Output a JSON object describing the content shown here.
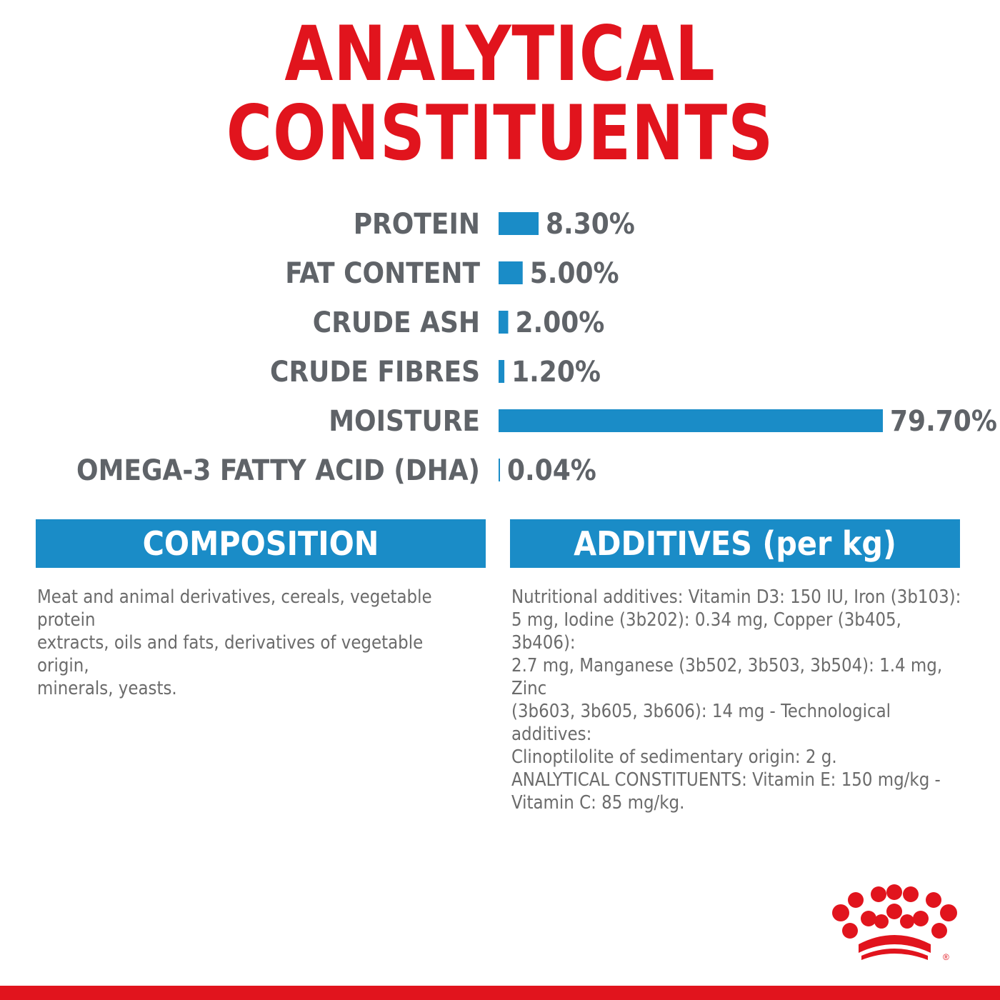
{
  "page_title": "ANALYTICAL CONSTITUENTS",
  "colors": {
    "title": "#e1141d",
    "bar": "#1a8cc7",
    "label": "#5f6368",
    "header_bg": "#1a8cc7",
    "body_text": "#6b6b6b",
    "brand_red": "#e1141d"
  },
  "chart_data": {
    "type": "bar",
    "orientation": "horizontal",
    "categories": [
      "PROTEIN",
      "FAT CONTENT",
      "CRUDE ASH",
      "CRUDE FIBRES",
      "MOISTURE",
      "OMEGA-3 FATTY ACID (DHA)"
    ],
    "values": [
      8.3,
      5.0,
      2.0,
      1.2,
      79.7,
      0.04
    ],
    "value_labels": [
      "8.30%",
      "5.00%",
      "2.00%",
      "1.20%",
      "79.70%",
      "0.04%"
    ],
    "unit": "%",
    "xlim": [
      0,
      79.7
    ],
    "grid": false,
    "legend": "none"
  },
  "composition": {
    "header": "COMPOSITION",
    "lines": [
      "Meat and animal derivatives, cereals, vegetable protein",
      "extracts, oils and fats, derivatives of vegetable origin,",
      "minerals, yeasts."
    ]
  },
  "additives": {
    "header": "ADDITIVES (per kg)",
    "lines": [
      "Nutritional additives: Vitamin D3: 150 IU, Iron (3b103):",
      "5 mg, Iodine (3b202): 0.34 mg, Copper (3b405, 3b406):",
      "2.7 mg, Manganese (3b502, 3b503, 3b504): 1.4 mg, Zinc",
      "(3b603, 3b605, 3b606): 14 mg - Technological additives:",
      "Clinoptilolite of sedimentary origin: 2 g.",
      "ANALYTICAL CONSTITUENTS: Vitamin E: 150 mg/kg -",
      "Vitamin C: 85 mg/kg."
    ]
  },
  "logo": {
    "icon": "royal-crown-logo-icon",
    "mark": "®"
  }
}
